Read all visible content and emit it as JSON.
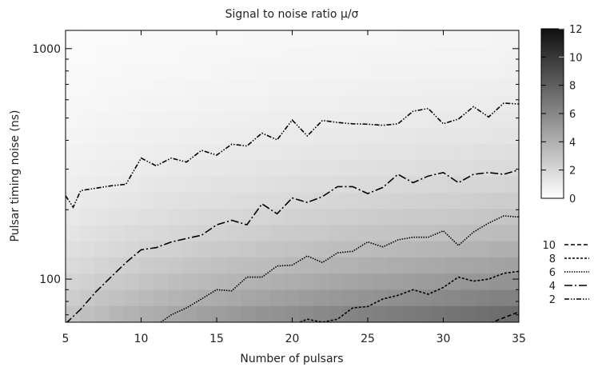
{
  "chart_data": {
    "type": "heatmap",
    "title": "Signal to noise ratio μ/σ",
    "xlabel": "Number of pulsars",
    "ylabel": "Pulsar timing noise (ns)",
    "xlim": [
      5,
      35
    ],
    "ylim": [
      65,
      1200
    ],
    "yscale": "log",
    "xticks": [
      5,
      10,
      15,
      20,
      25,
      30,
      35
    ],
    "yticks": [
      100,
      1000
    ],
    "colorbar": {
      "range": [
        0,
        12
      ],
      "ticks": [
        0,
        2,
        4,
        6,
        8,
        10,
        12
      ],
      "colormap": "grayscale white-to-black"
    },
    "contour_legend": [
      "10",
      "8",
      "6",
      "4",
      "2"
    ],
    "contours": [
      {
        "level": "2",
        "points": [
          [
            5,
            230
          ],
          [
            5.5,
            205
          ],
          [
            6,
            242
          ],
          [
            7,
            248
          ],
          [
            8,
            254
          ],
          [
            9,
            258
          ],
          [
            10,
            335
          ],
          [
            11,
            310
          ],
          [
            12,
            335
          ],
          [
            13,
            322
          ],
          [
            14,
            362
          ],
          [
            15,
            345
          ],
          [
            16,
            385
          ],
          [
            17,
            378
          ],
          [
            18,
            430
          ],
          [
            19,
            402
          ],
          [
            20,
            490
          ],
          [
            21,
            418
          ],
          [
            22,
            488
          ],
          [
            23,
            478
          ],
          [
            24,
            472
          ],
          [
            25,
            470
          ],
          [
            26,
            465
          ],
          [
            27,
            472
          ],
          [
            28,
            535
          ],
          [
            29,
            550
          ],
          [
            30,
            472
          ],
          [
            31,
            495
          ],
          [
            32,
            560
          ],
          [
            33,
            505
          ],
          [
            34,
            580
          ],
          [
            35,
            575
          ]
        ]
      },
      {
        "level": "4",
        "points": [
          [
            5,
            64
          ],
          [
            6,
            74
          ],
          [
            7,
            88
          ],
          [
            8,
            102
          ],
          [
            9,
            118
          ],
          [
            10,
            134
          ],
          [
            11,
            137
          ],
          [
            12,
            145
          ],
          [
            13,
            150
          ],
          [
            14,
            155
          ],
          [
            15,
            172
          ],
          [
            16,
            180
          ],
          [
            17,
            172
          ],
          [
            18,
            212
          ],
          [
            19,
            192
          ],
          [
            20,
            225
          ],
          [
            21,
            215
          ],
          [
            22,
            228
          ],
          [
            23,
            252
          ],
          [
            24,
            252
          ],
          [
            25,
            235
          ],
          [
            26,
            250
          ],
          [
            27,
            285
          ],
          [
            28,
            262
          ],
          [
            29,
            280
          ],
          [
            30,
            290
          ],
          [
            31,
            262
          ],
          [
            32,
            285
          ],
          [
            33,
            290
          ],
          [
            34,
            285
          ],
          [
            35,
            298
          ]
        ]
      },
      {
        "level": "6",
        "points": [
          [
            11.3,
            65
          ],
          [
            12,
            70
          ],
          [
            13,
            75
          ],
          [
            14,
            82
          ],
          [
            15,
            90
          ],
          [
            16,
            89
          ],
          [
            17,
            102
          ],
          [
            18,
            102
          ],
          [
            19,
            114
          ],
          [
            20,
            115
          ],
          [
            21,
            126
          ],
          [
            22,
            118
          ],
          [
            23,
            130
          ],
          [
            24,
            132
          ],
          [
            25,
            145
          ],
          [
            26,
            138
          ],
          [
            27,
            148
          ],
          [
            28,
            152
          ],
          [
            29,
            152
          ],
          [
            30,
            162
          ],
          [
            31,
            140
          ],
          [
            32,
            160
          ],
          [
            33,
            175
          ],
          [
            34,
            188
          ],
          [
            35,
            186
          ]
        ]
      },
      {
        "level": "8",
        "points": [
          [
            20.5,
            65
          ],
          [
            21,
            67
          ],
          [
            22,
            65
          ],
          [
            23,
            67
          ],
          [
            24,
            75
          ],
          [
            25,
            76
          ],
          [
            26,
            82
          ],
          [
            27,
            85
          ],
          [
            28,
            90
          ],
          [
            29,
            86
          ],
          [
            30,
            92
          ],
          [
            31,
            102
          ],
          [
            32,
            98
          ],
          [
            33,
            100
          ],
          [
            34,
            106
          ],
          [
            35,
            108
          ]
        ]
      },
      {
        "level": "10",
        "points": [
          [
            31.8,
            65
          ],
          [
            32.5,
            64
          ],
          [
            33,
            64
          ],
          [
            34,
            68
          ],
          [
            35,
            72
          ]
        ]
      }
    ]
  }
}
